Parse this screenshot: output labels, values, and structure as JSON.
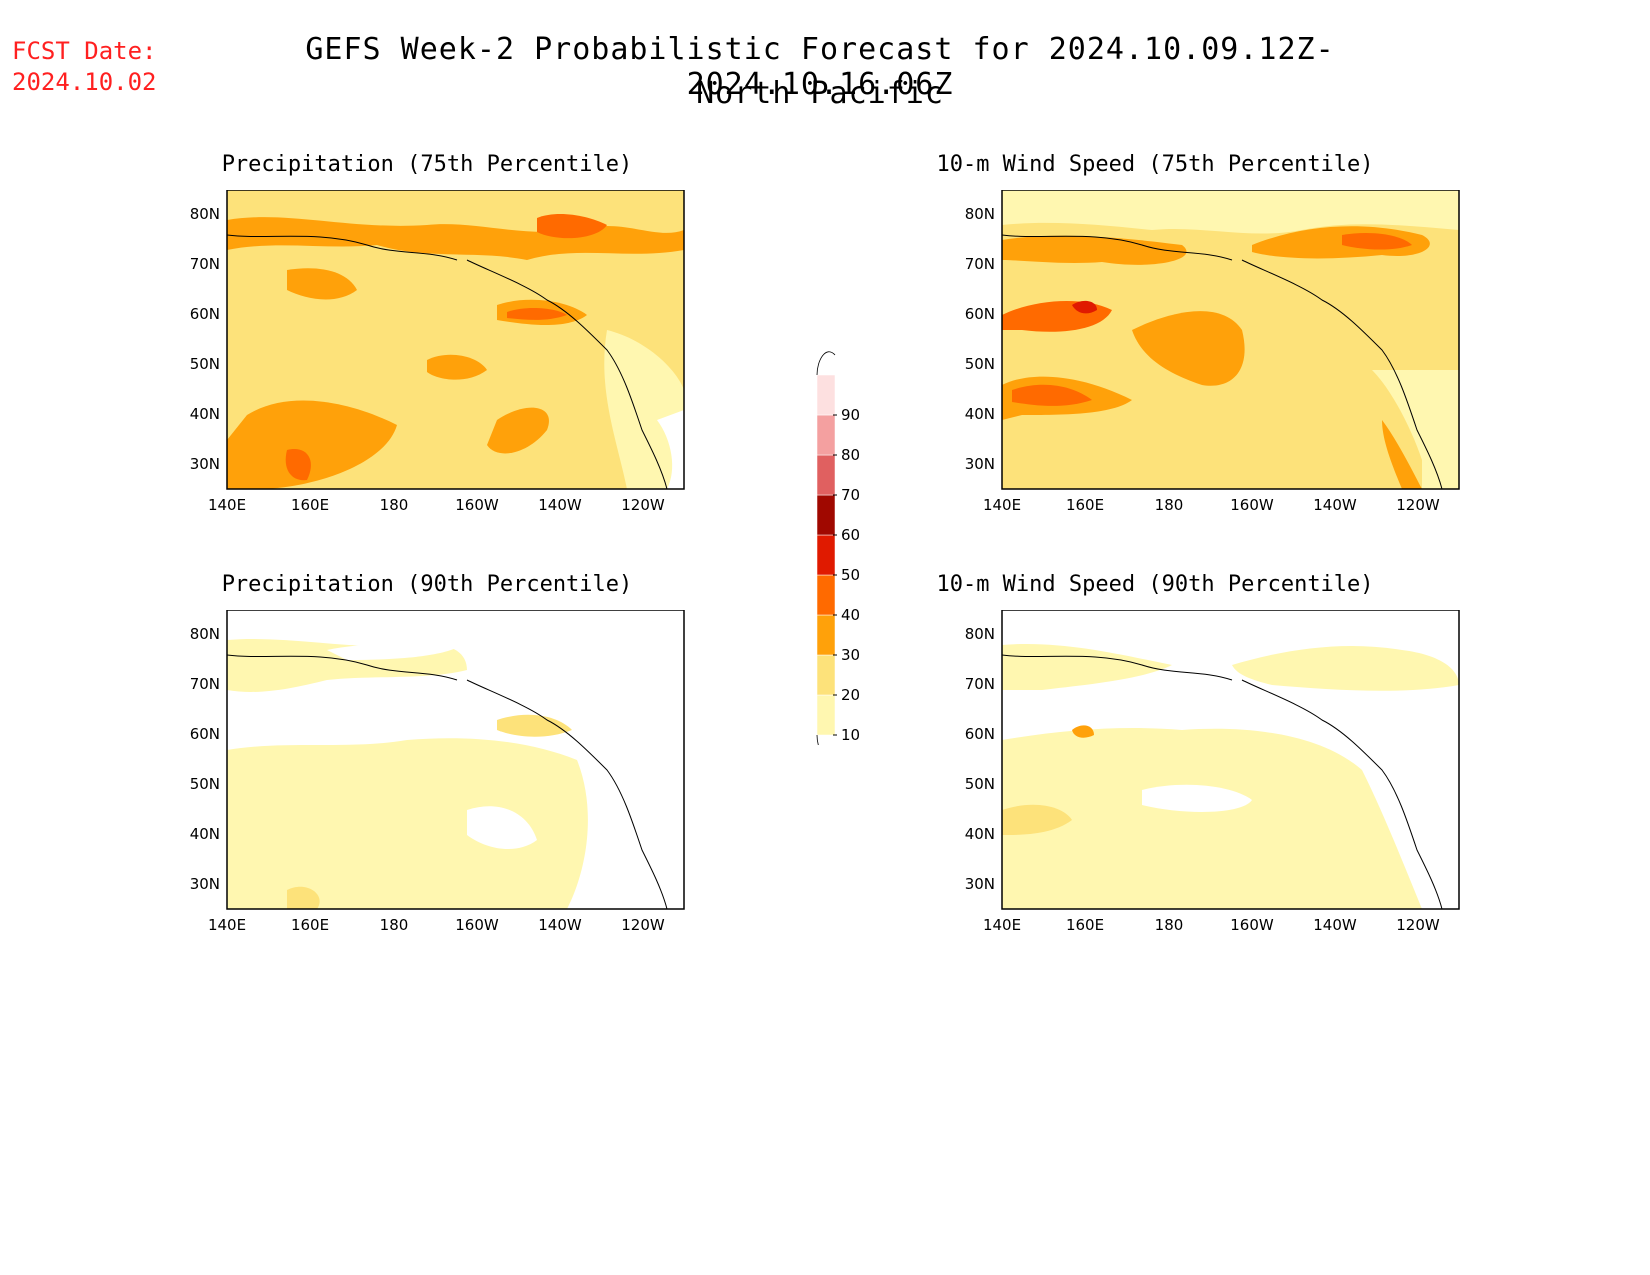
{
  "header": {
    "fcst_label": "FCST Date:",
    "fcst_date": "2024.10.02",
    "title_line1": "GEFS Week-2 Probabilistic Forecast for 2024.10.09.12Z-2024.10.16.06Z",
    "title_line2": "North Pacific"
  },
  "panels": [
    {
      "title": "Precipitation (75th Percentile)"
    },
    {
      "title": "10-m Wind Speed (75th Percentile)"
    },
    {
      "title": "Precipitation (90th Percentile)"
    },
    {
      "title": "10-m Wind Speed (90th Percentile)"
    }
  ],
  "axes": {
    "lon_ticks": [
      "140E",
      "160E",
      "180",
      "160W",
      "140W",
      "120W"
    ],
    "lat_ticks": [
      "80N",
      "70N",
      "60N",
      "50N",
      "40N",
      "30N"
    ]
  },
  "colorbar": {
    "levels": [
      "10",
      "20",
      "30",
      "40",
      "50",
      "60",
      "70",
      "80",
      "90"
    ],
    "colors": [
      "#fff7b0",
      "#fde27a",
      "#ffa10a",
      "#ff6a00",
      "#e01a00",
      "#a00800",
      "#e06060",
      "#f4a0a0",
      "#fde0e0"
    ]
  },
  "colors": {
    "fcst_text": "#ff2020",
    "low": "#fff7b0",
    "mid": "#fde27a",
    "high": "#ffa10a",
    "higher": "#ff6a00",
    "peak": "#e01a00"
  }
}
